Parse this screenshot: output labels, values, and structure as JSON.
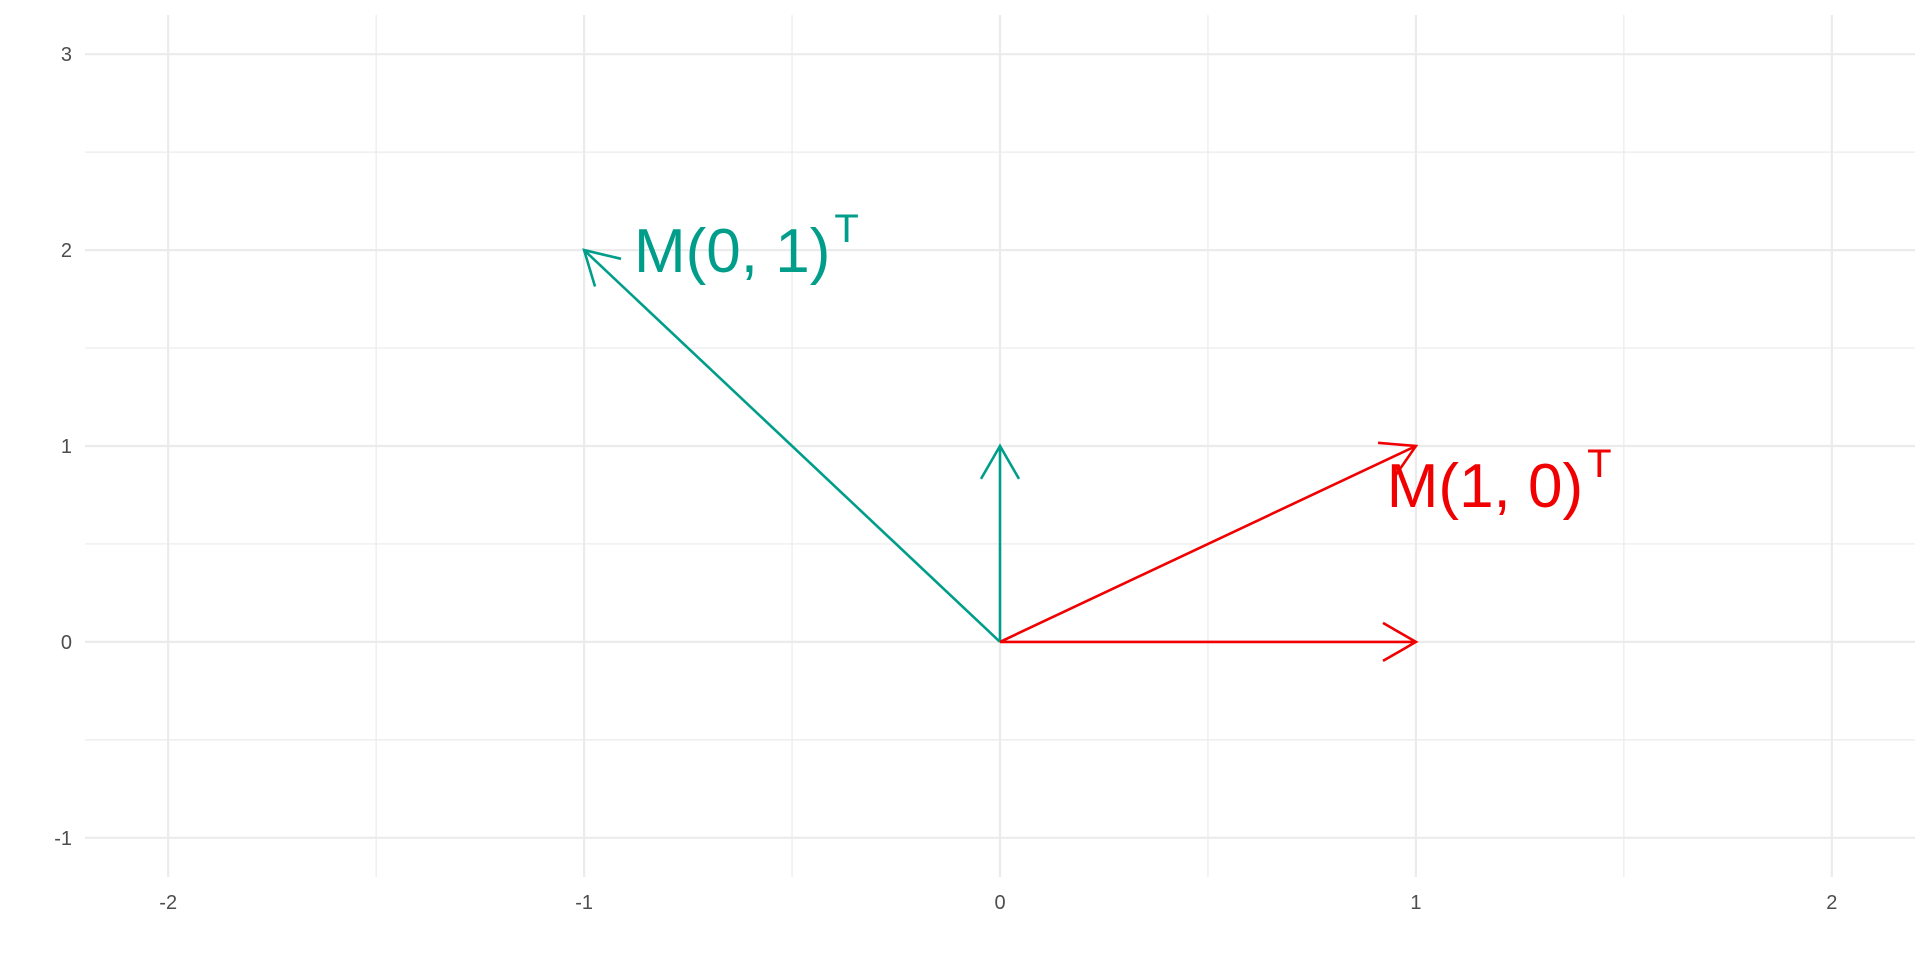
{
  "chart_data": {
    "type": "vector-field",
    "xlim": [
      -2.2,
      2.2
    ],
    "ylim": [
      -1.2,
      3.2
    ],
    "x_ticks": [
      -2,
      -1,
      0,
      1,
      2
    ],
    "y_ticks": [
      -1,
      0,
      1,
      2,
      3
    ],
    "x_tick_labels": [
      "-2",
      "-1",
      "0",
      "1",
      "2"
    ],
    "y_tick_labels": [
      "-1",
      "0",
      "1",
      "2",
      "3"
    ],
    "grid": true,
    "minor_grid": true,
    "colors": {
      "teal": "#009E8A",
      "red": "#F00000",
      "grid": "#ebebeb",
      "tick_text": "#4d4d4d"
    },
    "vectors": [
      {
        "id": "e2",
        "from": [
          0,
          0
        ],
        "to": [
          0,
          1
        ],
        "color": "#009E8A"
      },
      {
        "id": "Me2",
        "from": [
          0,
          0
        ],
        "to": [
          -1,
          2
        ],
        "color": "#009E8A"
      },
      {
        "id": "e1",
        "from": [
          0,
          0
        ],
        "to": [
          1,
          0
        ],
        "color": "#F00000"
      },
      {
        "id": "Me1",
        "from": [
          0,
          0
        ],
        "to": [
          1,
          1
        ],
        "color": "#F00000"
      }
    ],
    "annotations": [
      {
        "id": "label-Me2",
        "text": "M(0, 1)",
        "sup": "T",
        "x": -0.88,
        "y": 2.0,
        "color": "#009E8A"
      },
      {
        "id": "label-Me1",
        "text": "M(1, 0)",
        "sup": "T",
        "x": 0.93,
        "y": 0.8,
        "color": "#F00000"
      }
    ]
  }
}
